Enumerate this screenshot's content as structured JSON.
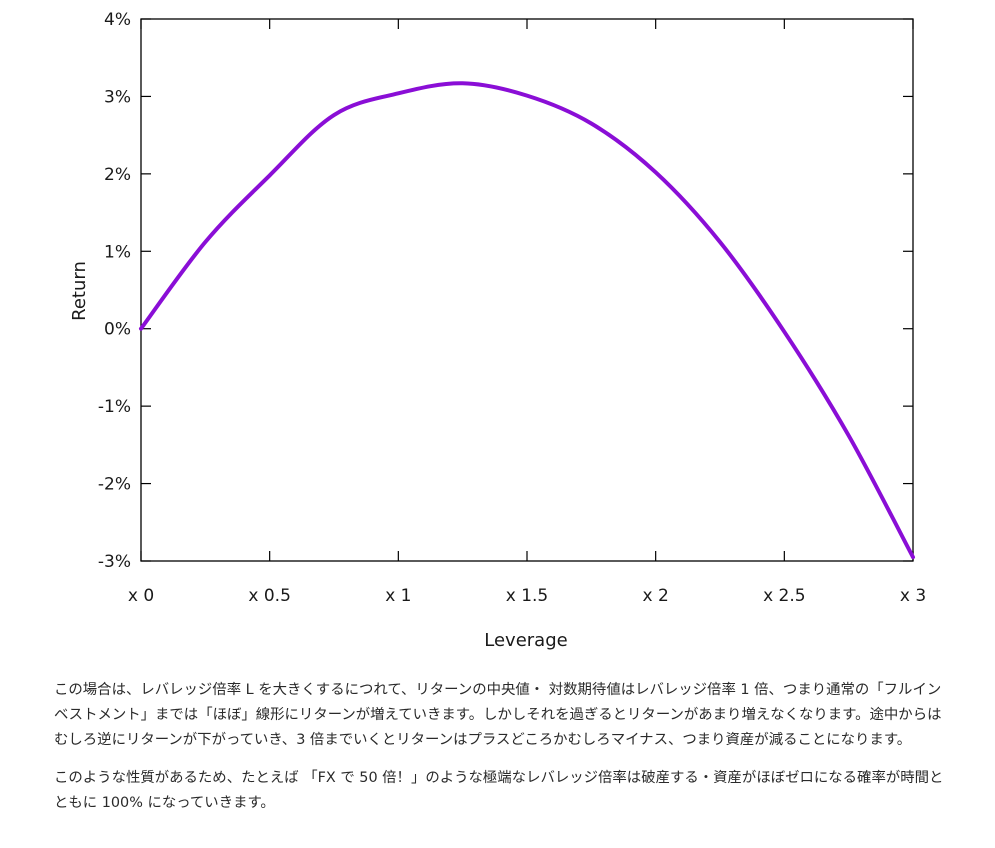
{
  "chart_data": {
    "type": "line",
    "xlabel": "Leverage",
    "ylabel": "Return",
    "xlim": [
      0,
      3
    ],
    "ylim": [
      -3,
      4
    ],
    "x_ticks": [
      0,
      0.5,
      1,
      1.5,
      2,
      2.5,
      3
    ],
    "x_tick_labels": [
      "x 0",
      "x 0.5",
      "x 1",
      "x 1.5",
      "x 2",
      "x 2.5",
      "x 3"
    ],
    "y_ticks": [
      4,
      3,
      2,
      1,
      0,
      -1,
      -2,
      -3
    ],
    "y_tick_labels": [
      "4%",
      "3%",
      "2%",
      "1%",
      "0%",
      "-1%",
      "-2%",
      "-3%"
    ],
    "grid": false,
    "series": [
      {
        "color": "#8A0ED6",
        "x": [
          0,
          0.25,
          0.5,
          0.75,
          1,
          1.25,
          1.5,
          1.75,
          2,
          2.25,
          2.5,
          2.75,
          3
        ],
        "y": [
          0,
          1.12,
          1.98,
          2.76,
          3.04,
          3.17,
          3.01,
          2.65,
          2.02,
          1.12,
          -0.04,
          -1.38,
          -2.95
        ]
      }
    ]
  },
  "article": {
    "paragraphs": [
      "この場合は、レバレッジ倍率 L を大きくするにつれて、リターンの中央値・ 対数期待値はレバレッジ倍率 1 倍、つまり通常の「フルインベストメント」までは「ほぼ」線形にリターンが増えていきます。しかしそれを過ぎるとリターンがあまり増えなくなります。途中からはむしろ逆にリターンが下がっていき、3 倍までいくとリターンはプラスどころかむしろマイナス、つまり資産が減ることになります。",
      "このような性質があるため、たとえば 「FX で 50 倍！」のような極端なレバレッジ倍率は破産する・資産がほぼゼロになる確率が時間とともに 100% になっていきます。"
    ]
  }
}
